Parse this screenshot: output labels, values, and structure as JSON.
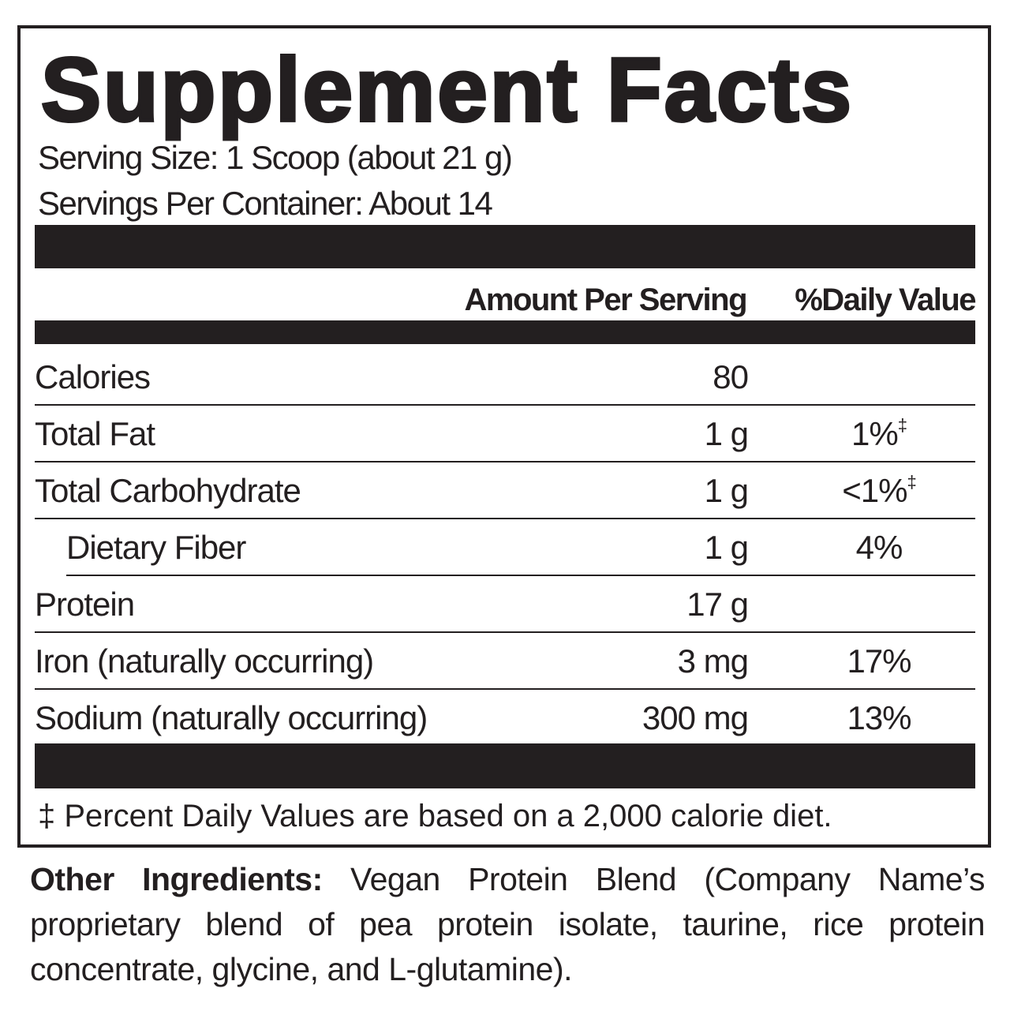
{
  "title": "Supplement Facts",
  "serving_size": "Serving Size: 1 Scoop (about 21 g)",
  "servings_per_container": "Servings Per Container: About 14",
  "header": {
    "amount": "Amount Per Serving",
    "daily_value": "%Daily Value"
  },
  "rows": [
    {
      "name": "Calories",
      "amount": "80"
    },
    {
      "name": "Total Fat",
      "amount": "1 g",
      "dv": "1%",
      "dv_mark": "‡"
    },
    {
      "name": "Total Carbohydrate",
      "amount": "1 g",
      "dv": "<1%",
      "dv_mark": "‡"
    },
    {
      "name": "Dietary Fiber",
      "amount": "1 g",
      "dv": "4%"
    },
    {
      "name": "Protein",
      "amount": "17 g"
    },
    {
      "name": "Iron (naturally occurring)",
      "amount": "3 mg",
      "dv": "17%"
    },
    {
      "name": "Sodium (naturally occurring)",
      "amount": "300 mg",
      "dv": "13%"
    }
  ],
  "footnote": "‡ Percent Daily Values are based on a 2,000 calorie diet.",
  "other_ingredients": {
    "label": "Other Ingredients:",
    "text": "Vegan Protein Blend (Company Name’s proprietary blend of pea protein isolate, taurine, rice protein concentrate, glycine, and L-glutamine)."
  }
}
